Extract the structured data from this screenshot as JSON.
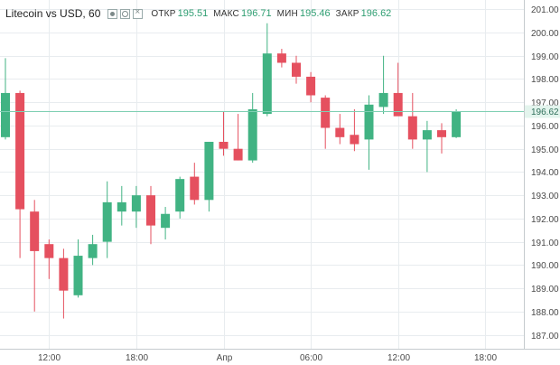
{
  "legend": {
    "symbol": "Litecoin vs USD, 60",
    "open_label": "ОТКР",
    "open_value": "195.51",
    "high_label": "МАКС",
    "high_value": "196.71",
    "low_label": "МИН",
    "low_value": "195.46",
    "close_label": "ЗАКР",
    "close_value": "196.62"
  },
  "colors": {
    "up": "#41b383",
    "down": "#e5505f",
    "price_line": "#7fcfb3",
    "grid": "#e8ecef",
    "price_badge": "#e3f4ed"
  },
  "chart_data": {
    "type": "candlestick",
    "title": "Litecoin vs USD, 60",
    "ylim": [
      186.4,
      201.4
    ],
    "y_ticks": [
      "187.00",
      "188.00",
      "189.00",
      "190.00",
      "191.00",
      "192.00",
      "193.00",
      "194.00",
      "195.00",
      "196.00",
      "197.00",
      "198.00",
      "199.00",
      "200.00",
      "201.00"
    ],
    "x_ticks": [
      {
        "label": "12:00",
        "index": 3
      },
      {
        "label": "18:00",
        "index": 9
      },
      {
        "label": "Апр",
        "index": 15
      },
      {
        "label": "06:00",
        "index": 21
      },
      {
        "label": "12:00",
        "index": 27
      },
      {
        "label": "18:00",
        "index": 33
      }
    ],
    "last_price": "196.62",
    "last_price_value": 196.62,
    "candles": [
      {
        "o": 195.5,
        "h": 198.9,
        "l": 195.4,
        "c": 197.4
      },
      {
        "o": 197.4,
        "h": 197.5,
        "l": 190.3,
        "c": 192.4
      },
      {
        "o": 192.3,
        "h": 192.8,
        "l": 188.0,
        "c": 190.6
      },
      {
        "o": 190.9,
        "h": 191.1,
        "l": 189.4,
        "c": 190.3
      },
      {
        "o": 190.3,
        "h": 190.7,
        "l": 187.7,
        "c": 188.9
      },
      {
        "o": 188.7,
        "h": 191.1,
        "l": 188.6,
        "c": 190.4
      },
      {
        "o": 190.3,
        "h": 191.3,
        "l": 190.0,
        "c": 190.9
      },
      {
        "o": 191.0,
        "h": 193.6,
        "l": 190.3,
        "c": 192.7
      },
      {
        "o": 192.3,
        "h": 193.4,
        "l": 191.7,
        "c": 192.7
      },
      {
        "o": 192.3,
        "h": 193.4,
        "l": 191.6,
        "c": 193.0
      },
      {
        "o": 193.0,
        "h": 193.4,
        "l": 190.9,
        "c": 191.7
      },
      {
        "o": 191.6,
        "h": 192.5,
        "l": 191.1,
        "c": 192.2
      },
      {
        "o": 192.3,
        "h": 193.8,
        "l": 192.0,
        "c": 193.7
      },
      {
        "o": 193.8,
        "h": 194.4,
        "l": 192.6,
        "c": 192.8
      },
      {
        "o": 192.8,
        "h": 195.3,
        "l": 192.3,
        "c": 195.3
      },
      {
        "o": 195.3,
        "h": 196.6,
        "l": 194.7,
        "c": 195.0
      },
      {
        "o": 195.0,
        "h": 196.5,
        "l": 194.5,
        "c": 194.5
      },
      {
        "o": 194.5,
        "h": 197.4,
        "l": 194.4,
        "c": 196.7
      },
      {
        "o": 196.5,
        "h": 200.4,
        "l": 196.4,
        "c": 199.1
      },
      {
        "o": 199.1,
        "h": 199.3,
        "l": 198.5,
        "c": 198.7
      },
      {
        "o": 198.7,
        "h": 199.0,
        "l": 197.8,
        "c": 198.1
      },
      {
        "o": 198.1,
        "h": 198.3,
        "l": 197.0,
        "c": 197.3
      },
      {
        "o": 197.2,
        "h": 197.3,
        "l": 195.0,
        "c": 195.9
      },
      {
        "o": 195.9,
        "h": 196.5,
        "l": 195.2,
        "c": 195.5
      },
      {
        "o": 195.6,
        "h": 196.7,
        "l": 194.9,
        "c": 195.2
      },
      {
        "o": 195.4,
        "h": 197.3,
        "l": 194.1,
        "c": 196.9
      },
      {
        "o": 196.8,
        "h": 199.0,
        "l": 196.5,
        "c": 197.4
      },
      {
        "o": 197.4,
        "h": 198.7,
        "l": 196.5,
        "c": 196.4
      },
      {
        "o": 196.4,
        "h": 197.4,
        "l": 195.0,
        "c": 195.4
      },
      {
        "o": 195.4,
        "h": 196.2,
        "l": 194.0,
        "c": 195.8
      },
      {
        "o": 195.8,
        "h": 196.1,
        "l": 194.8,
        "c": 195.5
      },
      {
        "o": 195.5,
        "h": 196.7,
        "l": 195.46,
        "c": 196.62
      }
    ]
  }
}
